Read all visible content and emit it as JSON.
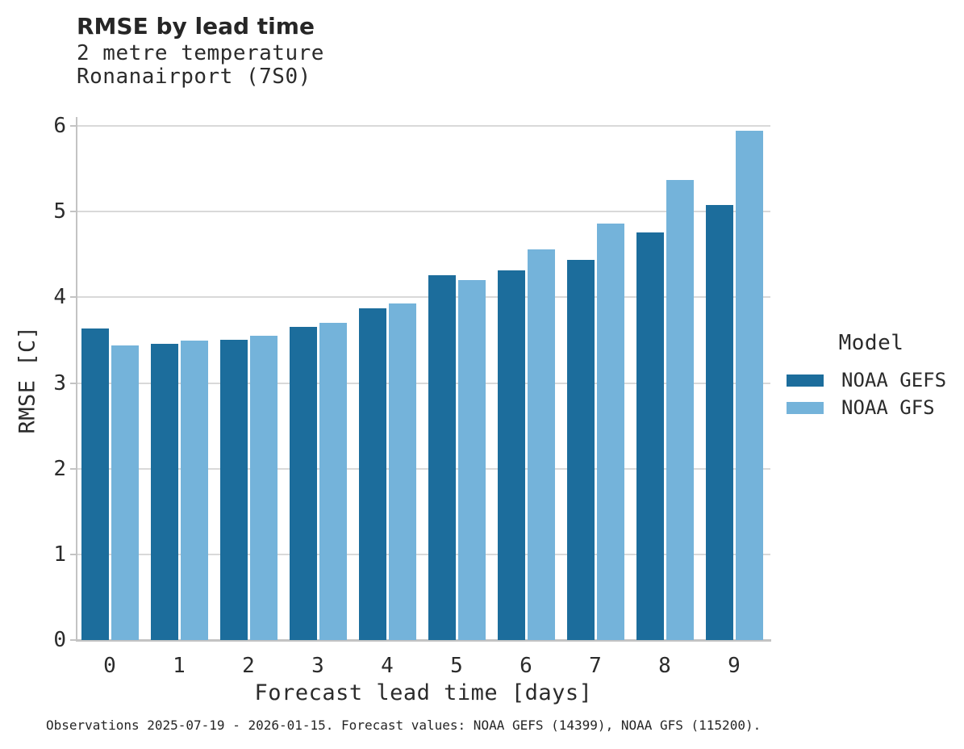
{
  "title": "RMSE by lead time",
  "subtitle1": "2 metre temperature",
  "subtitle2": "Ronanairport (7S0)",
  "footer": "Observations 2025-07-19 - 2026-01-15. Forecast values: NOAA GEFS (14399), NOAA GFS (115200).",
  "legend": {
    "title": "Model"
  },
  "colors": {
    "gefs_dark_blue": "#1c6d9c",
    "gfs_light_blue": "#74b3da",
    "gridline": "#d9d9d9",
    "axis_spine": "#c3c3c3",
    "text": "#2b2b2b"
  },
  "chart_data": {
    "type": "bar",
    "title": "RMSE by lead time",
    "subtitle_lines": [
      "2 metre temperature",
      "Ronanairport (7S0)"
    ],
    "categories": [
      "0",
      "1",
      "2",
      "3",
      "4",
      "5",
      "6",
      "7",
      "8",
      "9"
    ],
    "series": [
      {
        "name": "NOAA GEFS",
        "color": "#1c6d9c",
        "values": [
          3.64,
          3.46,
          3.5,
          3.65,
          3.87,
          4.26,
          4.31,
          4.44,
          4.76,
          5.08
        ]
      },
      {
        "name": "NOAA GFS",
        "color": "#74b3da",
        "values": [
          3.44,
          3.49,
          3.55,
          3.7,
          3.93,
          4.2,
          4.56,
          4.86,
          5.37,
          5.94
        ]
      }
    ],
    "xlabel": "Forecast lead time [days]",
    "ylabel": "RMSE [C]",
    "ylim": [
      0,
      6
    ],
    "yticks": [
      0,
      1,
      2,
      3,
      4,
      5,
      6
    ],
    "grid": true,
    "legend_title": "Model",
    "legend_position": "right",
    "footnote": "Observations 2025-07-19 - 2026-01-15. Forecast values: NOAA GEFS (14399), NOAA GFS (115200)."
  }
}
